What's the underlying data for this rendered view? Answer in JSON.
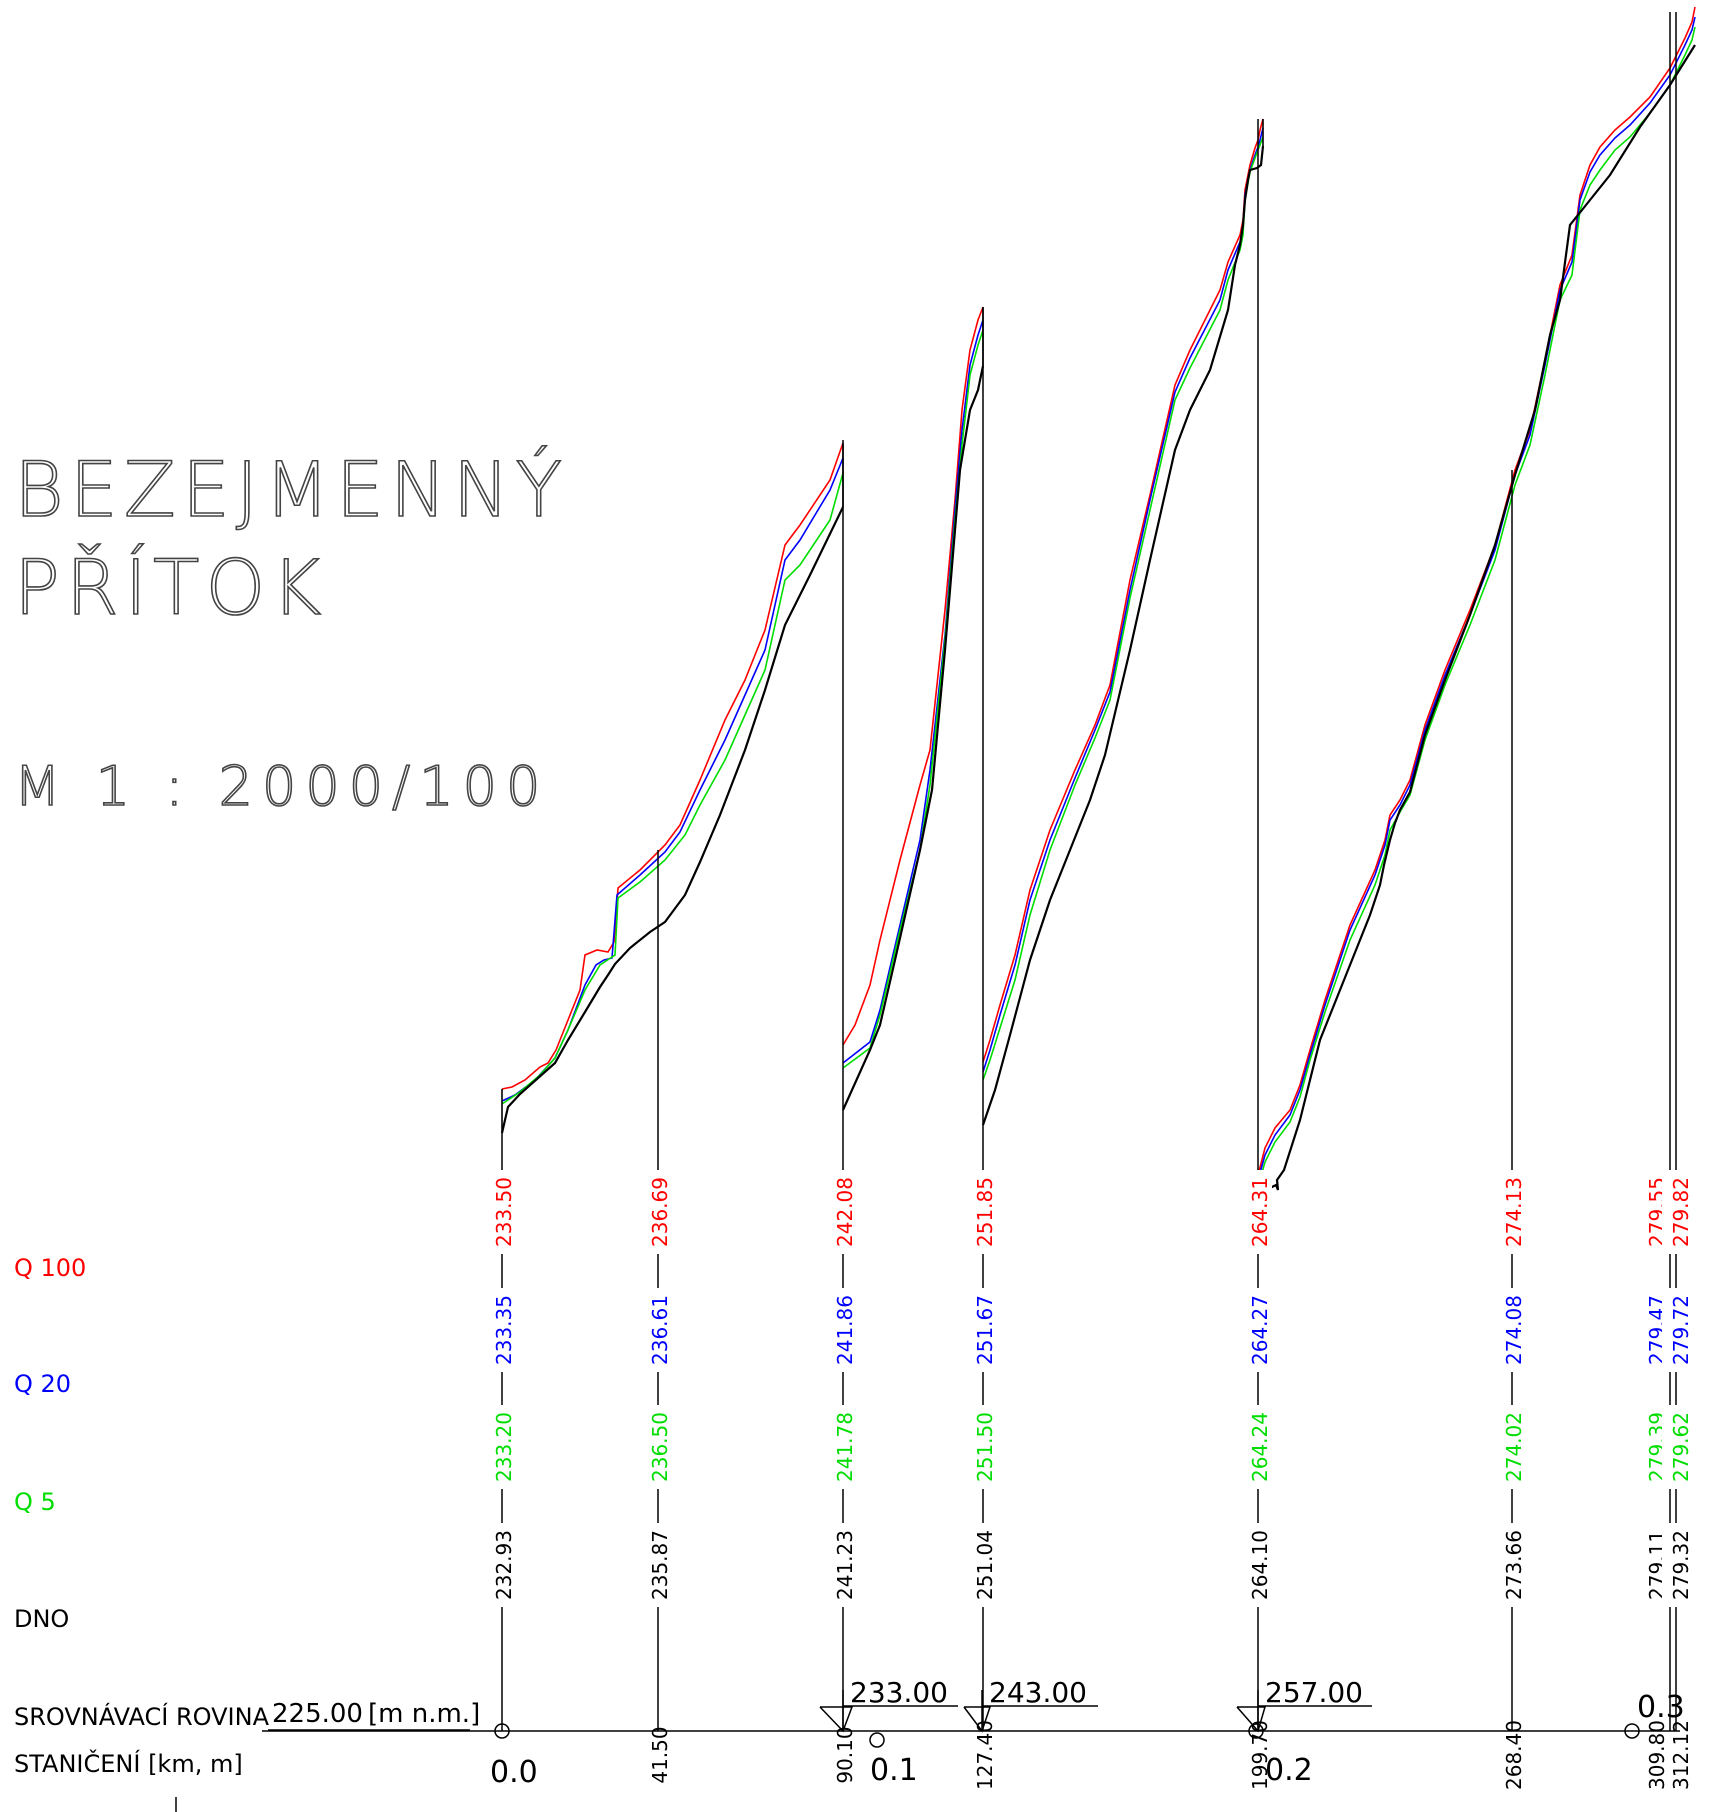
{
  "title": {
    "line1": "BEZEJMENNÝ",
    "line2": "PŘÍTOK",
    "scale": "M 1 : 2000/100"
  },
  "rows": {
    "q100": "Q 100",
    "q20": "Q 20",
    "q5": "Q 5",
    "dno": "DNO",
    "srovnavaci": "SROVNÁVACÍ ROVINA",
    "stanice": "STANIČENÍ [km, m]"
  },
  "datum": {
    "value": "225.00",
    "unit": "[m n.m.]"
  },
  "colors": {
    "q100": "#ff0000",
    "q20": "#0000ff",
    "q5": "#00dd00",
    "dno": "#000000"
  },
  "stations": [
    {
      "chainage": "0.0",
      "q100": "233.50",
      "q20": "233.35",
      "q5": "233.20",
      "dno": "232.93"
    },
    {
      "chainage": "41.50",
      "q100": "236.69",
      "q20": "236.61",
      "q5": "236.50",
      "dno": "235.87"
    },
    {
      "chainage": "90.10",
      "q100": "242.08",
      "q20": "241.86",
      "q5": "241.78",
      "dno": "241.23"
    },
    {
      "chainage": "127.40",
      "q100": "251.85",
      "q20": "251.67",
      "q5": "251.50",
      "dno": "251.04"
    },
    {
      "chainage": "199.70",
      "q100": "264.31",
      "q20": "264.27",
      "q5": "264.24",
      "dno": "264.10"
    },
    {
      "chainage": "268.40",
      "q100": "274.13",
      "q20": "274.08",
      "q5": "274.02",
      "dno": "273.66"
    },
    {
      "chainage": "309.80",
      "q100": "279.55",
      "q20": "279.47",
      "q5": "279.39",
      "dno": "279.11"
    },
    {
      "chainage": "312.12",
      "q100": "279.82",
      "q20": "279.72",
      "q5": "279.62",
      "dno": "279.32"
    }
  ],
  "km_marks": [
    "0.1",
    "0.2",
    "0.3"
  ],
  "datum_changes": [
    "233.00",
    "243.00",
    "257.00"
  ]
}
